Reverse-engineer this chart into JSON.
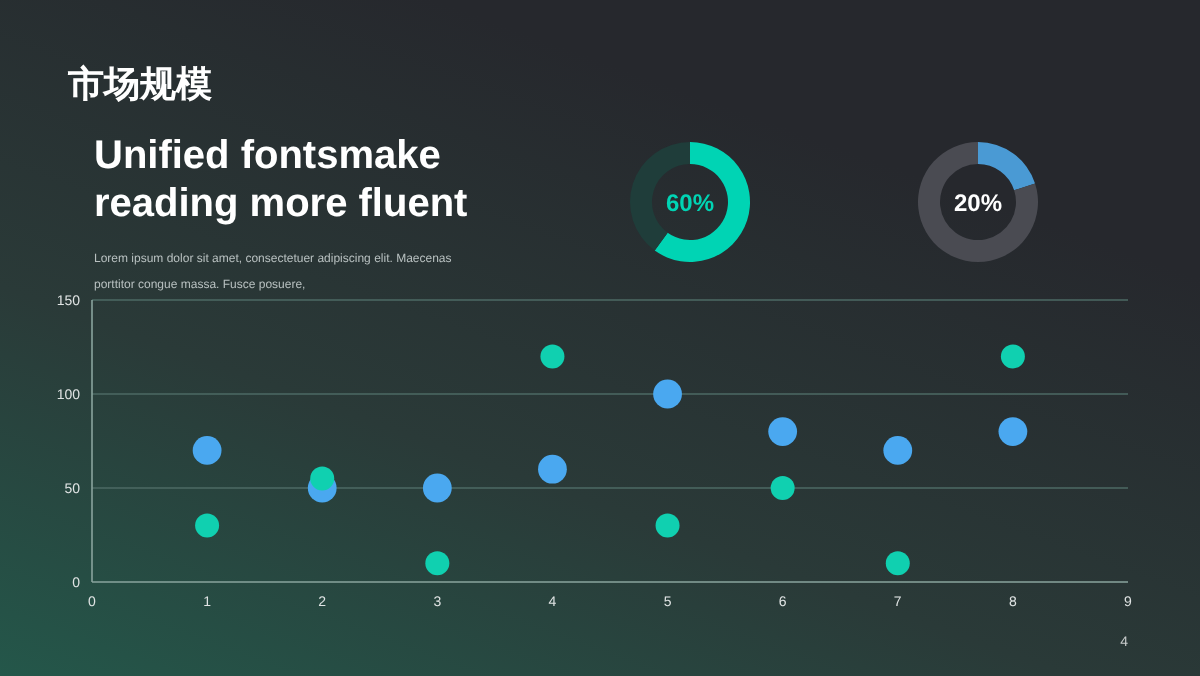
{
  "chart_data": [
    {
      "type": "donut",
      "categories": [
        null,
        null
      ],
      "values": [
        60,
        40
      ],
      "colors": [
        "#00d4b4",
        "#1f3d3a"
      ],
      "annotations": [
        "60%"
      ]
    },
    {
      "type": "donut",
      "categories": [
        null,
        null
      ],
      "values": [
        20,
        80
      ],
      "colors": [
        "#4a9ad4",
        "#4a4b52"
      ],
      "annotations": [
        "20%"
      ]
    },
    {
      "type": "scatter",
      "title": "市场规模",
      "subtitle": "Unified fontsmake reading more fluent",
      "annotations": [
        "Lorem ipsum dolor sit amet, consectetuer adipiscing elit. Maecenas porttitor congue massa. Fusce posuere,",
        "4"
      ],
      "x": [
        1,
        2,
        3,
        4,
        5,
        6,
        7,
        8
      ],
      "series": [
        {
          "color": "#4aa8f0",
          "values": [
            70,
            50,
            50,
            60,
            100,
            80,
            70,
            80
          ]
        },
        {
          "color": "#10d0b0",
          "values": [
            30,
            55,
            10,
            120,
            30,
            50,
            10,
            120
          ]
        }
      ],
      "xlim": [
        0,
        9
      ],
      "xticks": [
        0,
        1,
        2,
        3,
        4,
        5,
        6,
        7,
        8,
        9
      ],
      "ylim": [
        0,
        150
      ],
      "yticks": [
        0,
        50,
        100,
        150
      ],
      "grid": "y",
      "marker": "circle"
    }
  ]
}
